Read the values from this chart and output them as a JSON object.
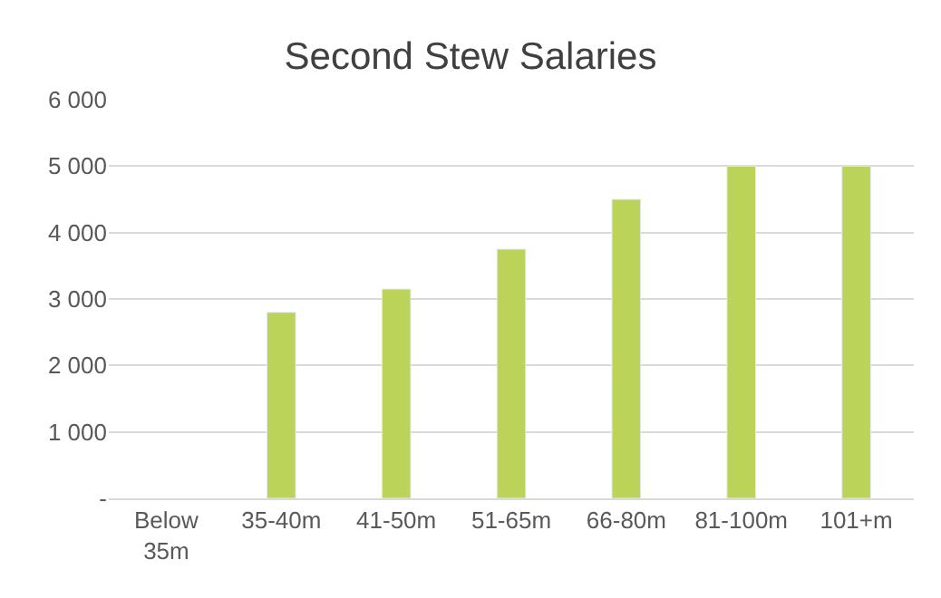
{
  "chart_data": {
    "type": "bar",
    "title": "Second Stew Salaries",
    "categories": [
      "Below 35m",
      "35-40m",
      "41-50m",
      "51-65m",
      "66-80m",
      "81-100m",
      "101+m"
    ],
    "values": [
      null,
      2800,
      3150,
      3750,
      4500,
      5000,
      5000
    ],
    "color": "#bcd35a",
    "ylim": [
      0,
      6000
    ],
    "yticks": [
      {
        "value": 0,
        "label": "-"
      },
      {
        "value": 1000,
        "label": "1 000"
      },
      {
        "value": 2000,
        "label": "2 000"
      },
      {
        "value": 3000,
        "label": "3 000"
      },
      {
        "value": 4000,
        "label": "4 000"
      },
      {
        "value": 5000,
        "label": "5 000"
      },
      {
        "value": 6000,
        "label": "6 000"
      }
    ],
    "grid": "y"
  }
}
